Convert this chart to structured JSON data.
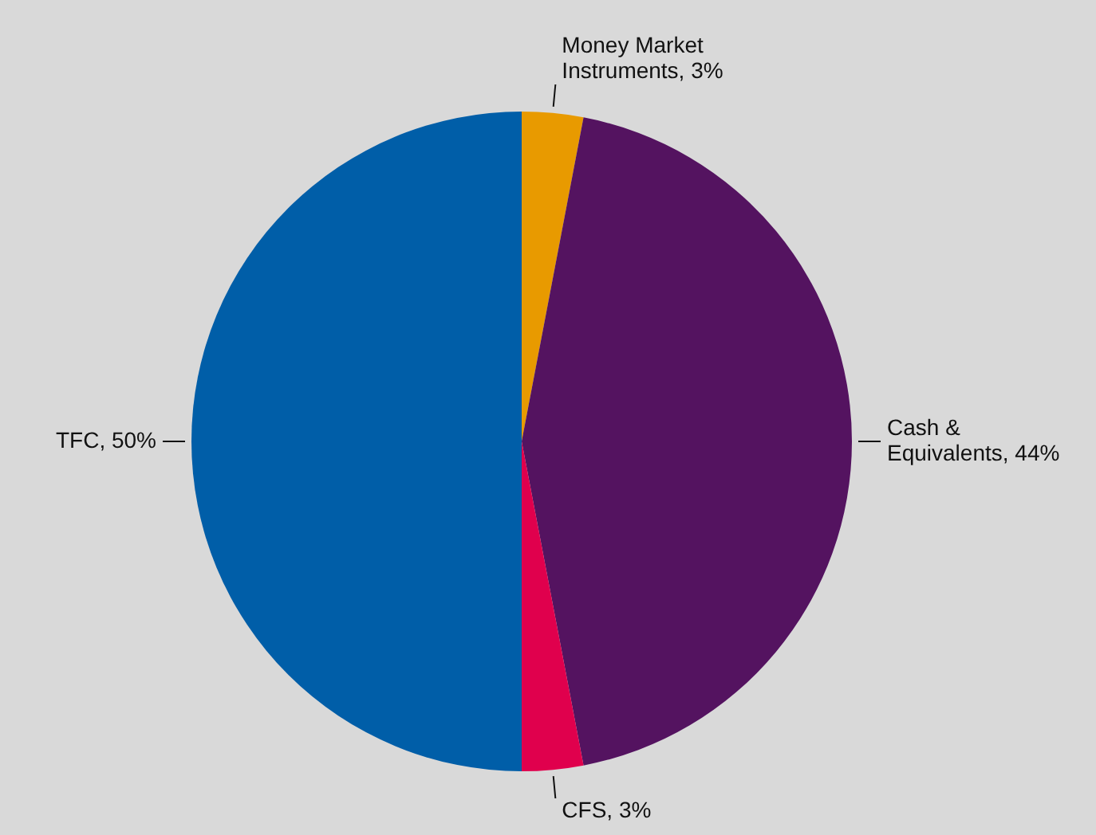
{
  "chart_data": {
    "type": "pie",
    "categories": [
      "Money Market Instruments, 3%",
      "Cash & Equivalents, 44%",
      "CFS, 3%",
      "TFC, 50%"
    ],
    "values": [
      3,
      44,
      3,
      50
    ],
    "colors": [
      "#e89a00",
      "#541360",
      "#e0004d",
      "#005ea8"
    ],
    "legend": false
  }
}
